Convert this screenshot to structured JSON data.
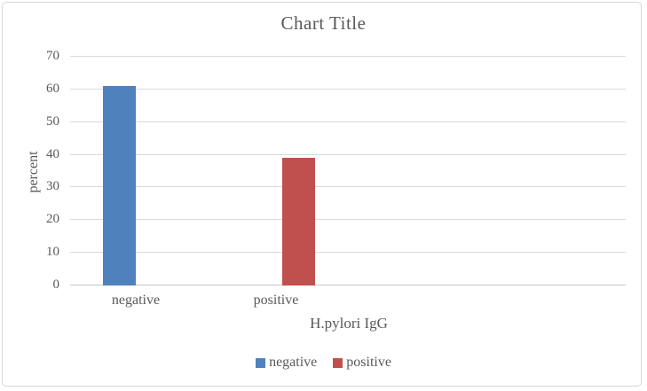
{
  "chart_data": {
    "type": "bar",
    "title": "Chart Title",
    "xlabel": "H.pylori IgG",
    "ylabel": "percent",
    "categories": [
      "negative",
      "positive"
    ],
    "series": [
      {
        "name": "negative",
        "color": "#4F81BD",
        "values": [
          61,
          null
        ]
      },
      {
        "name": "positive",
        "color": "#C0504D",
        "values": [
          null,
          39
        ]
      }
    ],
    "ylim": [
      0,
      70
    ],
    "yticks": [
      0,
      10,
      20,
      30,
      40,
      50,
      60,
      70
    ],
    "grid": true,
    "legend_position": "bottom",
    "text_color": "#595959",
    "gridline_color": "#d9d9d9"
  }
}
